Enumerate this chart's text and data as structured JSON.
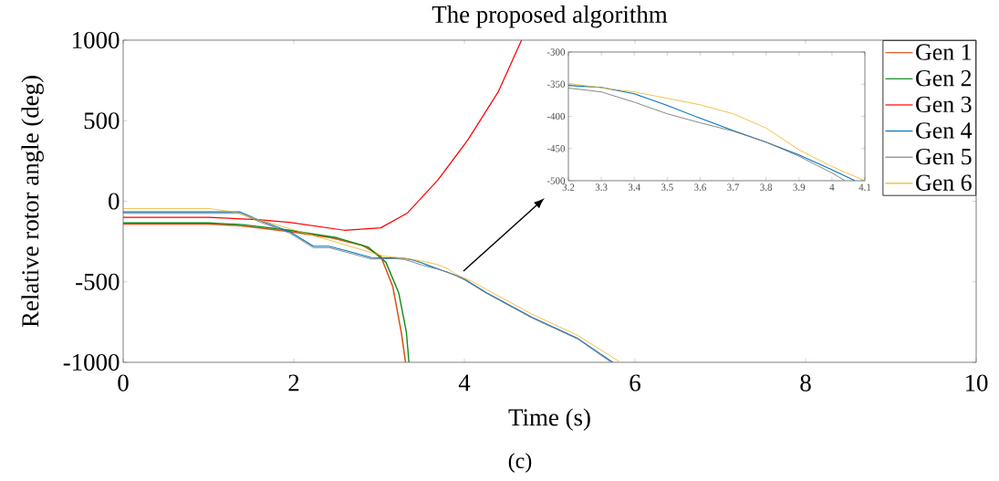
{
  "chart_data": [
    {
      "type": "line",
      "title": "The proposed algorithm",
      "xlabel": "Time (s)",
      "ylabel": "Relative rotor angle (deg)",
      "annotations": [
        "(c)"
      ],
      "xlim": [
        0,
        10
      ],
      "ylim": [
        -1000,
        1000
      ],
      "xticks": [
        0,
        2,
        4,
        6,
        8,
        10
      ],
      "yticks": [
        -1000,
        -500,
        0,
        500,
        1000
      ],
      "legend": "top right",
      "marker": "none",
      "line_style": "solid",
      "grid": false,
      "series": [
        {
          "name": "Gen 1",
          "color": "#d95319",
          "x": [
            0,
            1.0,
            1.37,
            1.95,
            2.44,
            2.8,
            3.02,
            3.16,
            3.26,
            3.31
          ],
          "values": [
            -142,
            -142,
            -152,
            -188,
            -227,
            -273,
            -341,
            -528,
            -813,
            -1000
          ]
        },
        {
          "name": "Gen 2",
          "color": "#0e8a16",
          "x": [
            0,
            1.0,
            1.4,
            1.95,
            2.51,
            2.87,
            3.08,
            3.23,
            3.32,
            3.35
          ],
          "values": [
            -135,
            -135,
            -145,
            -180,
            -227,
            -284,
            -379,
            -568,
            -813,
            -1000
          ]
        },
        {
          "name": "Gen 3",
          "color": "#ff0000",
          "x": [
            0,
            1.0,
            1.58,
            1.95,
            2.59,
            3.02,
            3.33,
            3.69,
            4.04,
            4.4,
            4.67
          ],
          "values": [
            -100,
            -100,
            -114,
            -131,
            -180,
            -165,
            -74,
            132,
            380,
            682,
            1000
          ]
        },
        {
          "name": "Gen 4",
          "color": "#0072bd",
          "x": [
            0,
            1.0,
            1.37,
            1.62,
            1.95,
            2.23,
            2.41,
            2.65,
            2.91,
            3.2,
            3.3,
            3.4,
            3.5,
            3.6,
            3.7,
            3.8,
            3.9,
            4.0,
            4.26,
            4.79,
            5.33,
            5.74
          ],
          "values": [
            -66,
            -66,
            -66,
            -123,
            -188,
            -279,
            -279,
            -312,
            -350,
            -352,
            -355,
            -365,
            -383,
            -403,
            -422,
            -440,
            -460,
            -483,
            -568,
            -720,
            -852,
            -1000
          ]
        },
        {
          "name": "Gen 5",
          "color": "#808080",
          "x": [
            0,
            1.0,
            1.37,
            1.62,
            1.95,
            2.23,
            2.41,
            2.65,
            2.91,
            3.2,
            3.3,
            3.4,
            3.5,
            3.6,
            3.7,
            3.8,
            3.9,
            4.0,
            4.26,
            4.79,
            5.33,
            5.72
          ],
          "values": [
            -75,
            -75,
            -75,
            -132,
            -197,
            -288,
            -288,
            -321,
            -359,
            -356,
            -362,
            -378,
            -396,
            -410,
            -423,
            -440,
            -462,
            -488,
            -572,
            -724,
            -856,
            -1000
          ]
        },
        {
          "name": "Gen 6",
          "color": "#edb120",
          "x": [
            0,
            1.0,
            1.3,
            1.58,
            1.95,
            2.44,
            3.05,
            3.2,
            3.4,
            3.6,
            3.7,
            3.8,
            3.9,
            4.0,
            4.1,
            4.26,
            4.79,
            5.33,
            5.83
          ],
          "values": [
            -45,
            -45,
            -66,
            -114,
            -170,
            -245,
            -341,
            -349,
            -362,
            -382,
            -396,
            -418,
            -452,
            -478,
            -500,
            -548,
            -700,
            -833,
            -1000
          ]
        }
      ]
    },
    {
      "type": "line",
      "xlim": [
        3.2,
        4.1
      ],
      "ylim": [
        -500,
        -300
      ],
      "xticks": [
        3.2,
        3.3,
        3.4,
        3.5,
        3.6,
        3.7,
        3.8,
        3.9,
        4,
        4.1
      ],
      "yticks": [
        -500,
        -450,
        -400,
        -350,
        -300
      ],
      "marker": "none",
      "line_style": "solid",
      "grid": false,
      "series": [
        {
          "color": "#0072bd",
          "x": [
            3.2,
            3.3,
            3.4,
            3.5,
            3.6,
            3.7,
            3.8,
            3.9,
            4.0,
            4.07
          ],
          "values": [
            -352,
            -355,
            -365,
            -383,
            -403,
            -422,
            -440,
            -460,
            -483,
            -500
          ]
        },
        {
          "color": "#808080",
          "x": [
            3.2,
            3.3,
            3.4,
            3.5,
            3.6,
            3.7,
            3.8,
            3.9,
            4.0,
            4.04
          ],
          "values": [
            -356,
            -362,
            -378,
            -396,
            -410,
            -423,
            -440,
            -462,
            -488,
            -500
          ]
        },
        {
          "color": "#edb120",
          "x": [
            3.2,
            3.4,
            3.6,
            3.7,
            3.8,
            3.9,
            4.0,
            4.1
          ],
          "values": [
            -349,
            -362,
            -382,
            -396,
            -418,
            -452,
            -478,
            -500
          ]
        }
      ]
    }
  ]
}
